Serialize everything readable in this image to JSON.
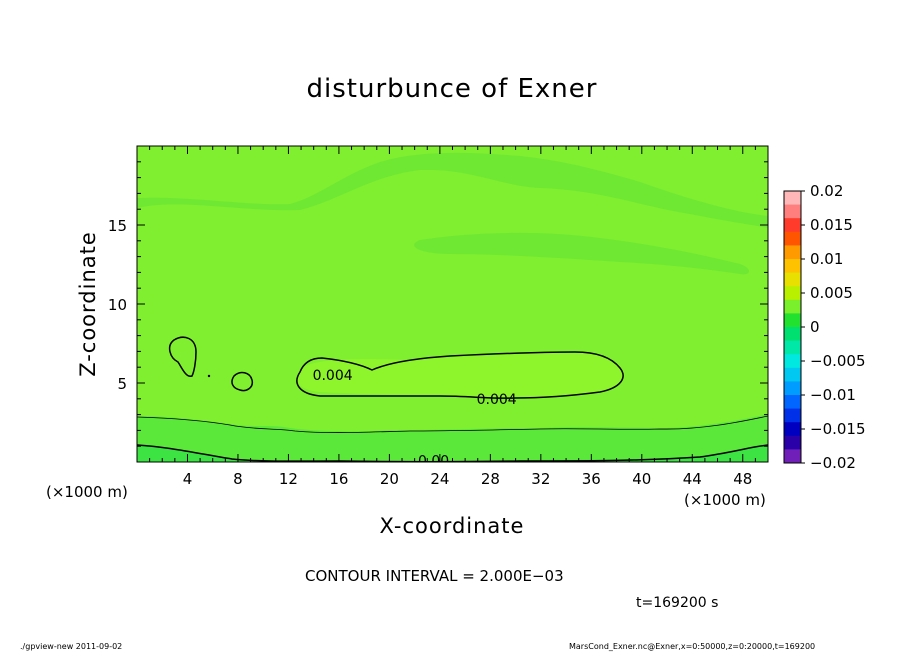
{
  "chart_data": {
    "type": "contour",
    "title": "disturbunce of Exner",
    "xlabel": "X-coordinate",
    "ylabel": "Z-coordinate",
    "x_unit": "(×1000 m)",
    "xlim": [
      0,
      50
    ],
    "ylim": [
      0,
      20
    ],
    "x_ticks": [
      4,
      8,
      12,
      16,
      20,
      24,
      28,
      32,
      36,
      40,
      44,
      48
    ],
    "y_ticks": [
      5,
      10,
      15
    ],
    "contour_labels": [
      {
        "text": "0.004",
        "x": 15.5,
        "z": 5.5
      },
      {
        "text": "0.004",
        "x": 28.5,
        "z": 4.0
      },
      {
        "text": "0.00",
        "x": 23.5,
        "z": 0.1
      }
    ],
    "colorbar": {
      "ticks": [
        "0.02",
        "0.015",
        "0.01",
        "0.005",
        "0",
        "−0.005",
        "−0.01",
        "−0.015",
        "−0.02"
      ],
      "levels": [
        -0.02,
        0.02
      ],
      "colors_top_to_bottom": [
        "#ffb7b7",
        "#ff7f7f",
        "#ff3b2b",
        "#ff5500",
        "#ff9a00",
        "#ffc200",
        "#e8e000",
        "#b8f000",
        "#7aef2b",
        "#22e22f",
        "#00e070",
        "#00e8a8",
        "#00e8e0",
        "#00c8f0",
        "#009cff",
        "#0066ff",
        "#0030e8",
        "#0000c0",
        "#2a00a8",
        "#7020b8"
      ]
    },
    "field_colors": {
      "main": "#7fef2f",
      "light": "#8ef52c",
      "weak": "#6fe834",
      "bottom1": "#5ce83a",
      "bottom2": "#3de243"
    }
  },
  "footer": {
    "contour_interval": "CONTOUR INTERVAL = 2.000E−03",
    "time": "t=169200 s",
    "left": "./gpview-new   2011-09-02",
    "right": "MarsCond_Exner.nc@Exner,x=0:50000,z=0:20000,t=169200"
  }
}
